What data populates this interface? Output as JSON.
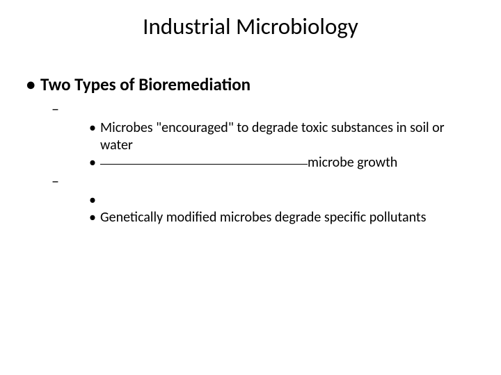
{
  "colors": {
    "background": "#ffffff",
    "text": "#000000"
  },
  "typography": {
    "title_fontsize": 33,
    "title_fontweight": 400,
    "level1_fontsize": 25,
    "level1_fontweight": 700,
    "level2_fontsize": 22,
    "level3_fontsize": 20,
    "font_family": "Calibri"
  },
  "title": "Industrial Microbiology",
  "bullets": {
    "l1": {
      "marker": "•",
      "text": "Two Types of Bioremediation"
    },
    "l2a": {
      "marker": "–"
    },
    "l3a": {
      "marker": "•",
      "text": "Microbes \"encouraged\" to degrade toxic substances in soil or water"
    },
    "l3b": {
      "marker": "•",
      "suffix": "microbe growth"
    },
    "l2b": {
      "marker": "–"
    },
    "l3c": {
      "marker": "•"
    },
    "l3d": {
      "marker": "•",
      "text": "Genetically modified microbes degrade specific pollutants"
    }
  }
}
